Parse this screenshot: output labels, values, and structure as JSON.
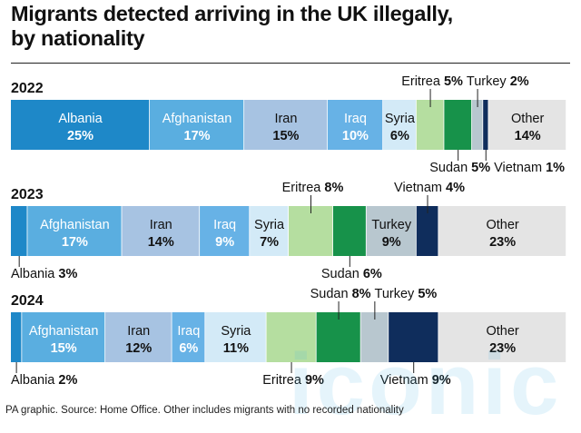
{
  "title_lines": [
    "Migrants detected arriving in the UK illegally,",
    "by nationality"
  ],
  "footer": "PA graphic. Source: Home Office. Other includes migrants with no recorded nationality",
  "watermark": "iconic",
  "chart_data": {
    "type": "bar",
    "orientation": "horizontal-stacked-100",
    "unit": "%",
    "rows": [
      {
        "label": "2022",
        "segments": [
          {
            "name": "Albania",
            "value": 25,
            "value_text": "25%",
            "color": "#1e88c8",
            "text_color": "#ffffff",
            "label_pos": "inside"
          },
          {
            "name": "Afghanistan",
            "value": 17,
            "value_text": "17%",
            "color": "#5aaee0",
            "text_color": "#ffffff",
            "label_pos": "inside"
          },
          {
            "name": "Iran",
            "value": 15,
            "value_text": "15%",
            "color": "#a7c3e2",
            "text_color": "#111111",
            "label_pos": "inside"
          },
          {
            "name": "Iraq",
            "value": 10,
            "value_text": "10%",
            "color": "#67b2e6",
            "text_color": "#ffffff",
            "label_pos": "inside"
          },
          {
            "name": "Syria",
            "value": 6,
            "value_text": "6%",
            "color": "#d3eaf7",
            "text_color": "#111111",
            "label_pos": "inside"
          },
          {
            "name": "Eritrea",
            "value": 5,
            "value_text": "5%",
            "color": "#b5dea0",
            "text_color": "#111111",
            "label_pos": "above"
          },
          {
            "name": "Sudan",
            "value": 5,
            "value_text": "5%",
            "color": "#17924a",
            "text_color": "#111111",
            "label_pos": "below"
          },
          {
            "name": "Turkey",
            "value": 2,
            "value_text": "2%",
            "color": "#b8c7cf",
            "text_color": "#111111",
            "label_pos": "above"
          },
          {
            "name": "Vietnam",
            "value": 1,
            "value_text": "1%",
            "color": "#0f2d5c",
            "text_color": "#111111",
            "label_pos": "below"
          },
          {
            "name": "Other",
            "value": 14,
            "value_text": "14%",
            "color": "#e4e4e4",
            "text_color": "#111111",
            "label_pos": "inside"
          }
        ]
      },
      {
        "label": "2023",
        "segments": [
          {
            "name": "Albania",
            "value": 3,
            "value_text": "3%",
            "color": "#1e88c8",
            "text_color": "#111111",
            "label_pos": "below"
          },
          {
            "name": "Afghanistan",
            "value": 17,
            "value_text": "17%",
            "color": "#5aaee0",
            "text_color": "#ffffff",
            "label_pos": "inside"
          },
          {
            "name": "Iran",
            "value": 14,
            "value_text": "14%",
            "color": "#a7c3e2",
            "text_color": "#111111",
            "label_pos": "inside"
          },
          {
            "name": "Iraq",
            "value": 9,
            "value_text": "9%",
            "color": "#67b2e6",
            "text_color": "#ffffff",
            "label_pos": "inside"
          },
          {
            "name": "Syria",
            "value": 7,
            "value_text": "7%",
            "color": "#d3eaf7",
            "text_color": "#111111",
            "label_pos": "inside"
          },
          {
            "name": "Eritrea",
            "value": 8,
            "value_text": "8%",
            "color": "#b5dea0",
            "text_color": "#111111",
            "label_pos": "above"
          },
          {
            "name": "Sudan",
            "value": 6,
            "value_text": "6%",
            "color": "#17924a",
            "text_color": "#111111",
            "label_pos": "below"
          },
          {
            "name": "Turkey",
            "value": 9,
            "value_text": "9%",
            "color": "#b8c7cf",
            "text_color": "#111111",
            "label_pos": "inside"
          },
          {
            "name": "Vietnam",
            "value": 4,
            "value_text": "4%",
            "color": "#0f2d5c",
            "text_color": "#111111",
            "label_pos": "above"
          },
          {
            "name": "Other",
            "value": 23,
            "value_text": "23%",
            "color": "#e4e4e4",
            "text_color": "#111111",
            "label_pos": "inside"
          }
        ]
      },
      {
        "label": "2024",
        "segments": [
          {
            "name": "Albania",
            "value": 2,
            "value_text": "2%",
            "color": "#1e88c8",
            "text_color": "#111111",
            "label_pos": "below"
          },
          {
            "name": "Afghanistan",
            "value": 15,
            "value_text": "15%",
            "color": "#5aaee0",
            "text_color": "#ffffff",
            "label_pos": "inside"
          },
          {
            "name": "Iran",
            "value": 12,
            "value_text": "12%",
            "color": "#a7c3e2",
            "text_color": "#111111",
            "label_pos": "inside"
          },
          {
            "name": "Iraq",
            "value": 6,
            "value_text": "6%",
            "color": "#67b2e6",
            "text_color": "#ffffff",
            "label_pos": "inside"
          },
          {
            "name": "Syria",
            "value": 11,
            "value_text": "11%",
            "color": "#d3eaf7",
            "text_color": "#111111",
            "label_pos": "inside"
          },
          {
            "name": "Eritrea",
            "value": 9,
            "value_text": "9%",
            "color": "#b5dea0",
            "text_color": "#111111",
            "label_pos": "below"
          },
          {
            "name": "Sudan",
            "value": 8,
            "value_text": "8%",
            "color": "#17924a",
            "text_color": "#111111",
            "label_pos": "above"
          },
          {
            "name": "Turkey",
            "value": 5,
            "value_text": "5%",
            "color": "#b8c7cf",
            "text_color": "#111111",
            "label_pos": "above"
          },
          {
            "name": "Vietnam",
            "value": 9,
            "value_text": "9%",
            "color": "#0f2d5c",
            "text_color": "#111111",
            "label_pos": "below"
          },
          {
            "name": "Other",
            "value": 23,
            "value_text": "23%",
            "color": "#e4e4e4",
            "text_color": "#111111",
            "label_pos": "inside"
          }
        ]
      }
    ]
  }
}
